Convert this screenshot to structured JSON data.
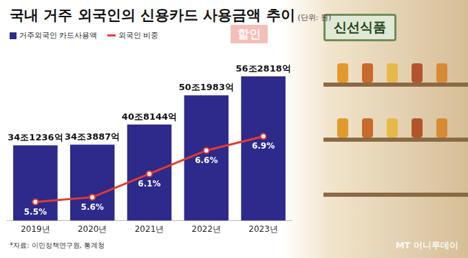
{
  "chart_data": {
    "type": "bar",
    "title": "국내 거주 외국인의 신용카드 사용금액 추이",
    "subtitle": "(단위: 원)",
    "categories": [
      "2019년",
      "2020년",
      "2021년",
      "2022년",
      "2023년"
    ],
    "series": [
      {
        "name": "거주외국인 카드사용액",
        "type": "bar",
        "color": "#2d2a8c",
        "values": [
          341236,
          343887,
          408144,
          501983,
          562818
        ],
        "value_labels": [
          "34조1236억",
          "34조3887억",
          "40조8144억",
          "50조1983억",
          "56조2818억"
        ]
      },
      {
        "name": "외국인 비중",
        "type": "line",
        "color": "#e63a2e",
        "axis": "y2",
        "marker": "circle",
        "values": [
          5.5,
          5.6,
          6.1,
          6.6,
          6.9
        ],
        "value_labels": [
          "5.5%",
          "5.6%",
          "6.1%",
          "6.6%",
          "6.9%"
        ]
      }
    ],
    "ylim": [
      100000,
      640000
    ],
    "y2lim": [
      5.1,
      8.7
    ],
    "grid": false,
    "legend": "top-left",
    "data_labels": true,
    "tick_labels": "x",
    "annotations": [
      "*자료: 이민정책연구원, 통계청",
      "MT 머니투데이",
      "신선식품",
      "할인"
    ]
  }
}
